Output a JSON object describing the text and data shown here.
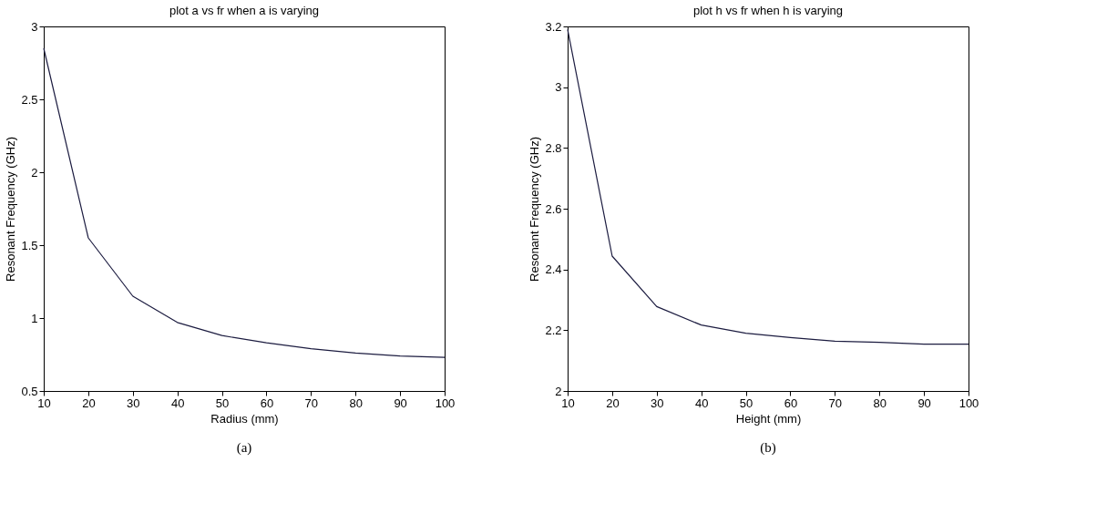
{
  "chart_data": [
    {
      "type": "line",
      "title": "plot a vs fr when a is varying",
      "xlabel": "Radius (mm)",
      "ylabel": "Resonant Frequency (GHz)",
      "annotations": [
        "(a)"
      ],
      "x": [
        10,
        20,
        30,
        40,
        50,
        60,
        70,
        80,
        90,
        100
      ],
      "series": [
        {
          "color": "#1c1c40",
          "values": [
            2.85,
            1.55,
            1.15,
            0.97,
            0.88,
            0.83,
            0.79,
            0.76,
            0.74,
            0.73
          ]
        }
      ],
      "xlim": [
        10,
        100
      ],
      "xticks": [
        10,
        20,
        30,
        40,
        50,
        60,
        70,
        80,
        90,
        100
      ],
      "ylim": [
        0.5,
        3
      ],
      "yticks": [
        0.5,
        1,
        1.5,
        2,
        2.5,
        3
      ],
      "line_style": "solid"
    },
    {
      "type": "line",
      "title": "plot h vs fr when h is varying",
      "xlabel": "Height (mm)",
      "ylabel": "Resonant Frequency (GHz)",
      "annotations": [
        "(b)"
      ],
      "x": [
        10,
        20,
        30,
        40,
        50,
        60,
        70,
        80,
        90,
        100
      ],
      "series": [
        {
          "color": "#1c1c40",
          "values": [
            3.19,
            2.444,
            2.278,
            2.217,
            2.19,
            2.176,
            2.164,
            2.16,
            2.154,
            2.154
          ]
        }
      ],
      "xlim": [
        10,
        100
      ],
      "xticks": [
        10,
        20,
        30,
        40,
        50,
        60,
        70,
        80,
        90,
        100
      ],
      "ylim": [
        2,
        3.2
      ],
      "yticks": [
        2,
        2.2,
        2.4,
        2.6,
        2.8,
        3,
        3.2
      ],
      "line_style": "solid"
    }
  ]
}
